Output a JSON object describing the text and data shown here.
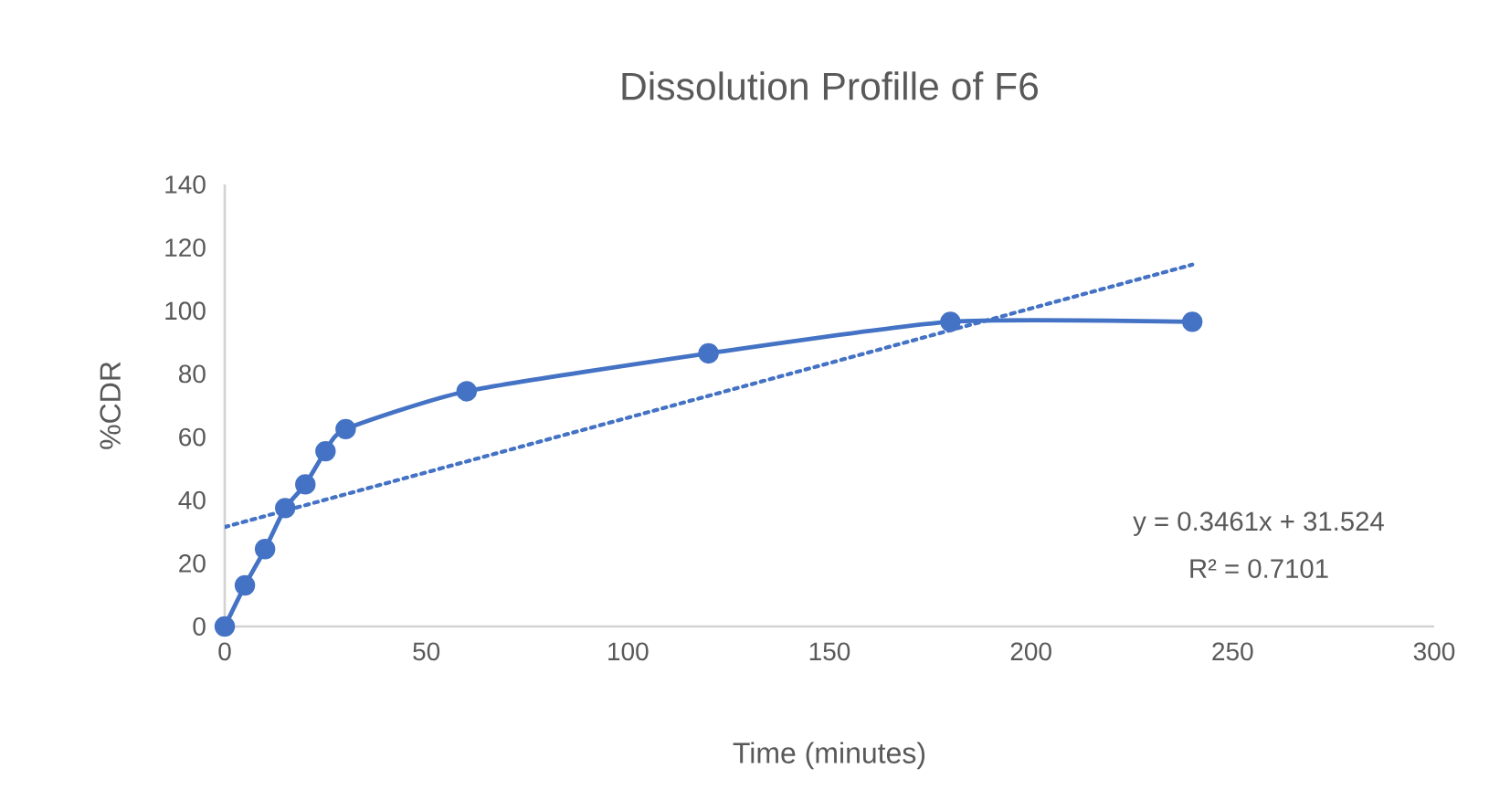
{
  "chart_data": {
    "type": "line",
    "title": "Dissolution Profille of F6",
    "xlabel": "Time (minutes)",
    "ylabel": "%CDR",
    "x": [
      0,
      5,
      10,
      15,
      20,
      25,
      30,
      60,
      120,
      180,
      240
    ],
    "series": [
      {
        "color": "#4472c4",
        "values": [
          0,
          13,
          24.5,
          37.5,
          45,
          55.5,
          62.5,
          74.5,
          86.5,
          96.5,
          96.5
        ],
        "marker": "circle",
        "line_style": "solid"
      },
      {
        "type": "line",
        "color": "#4472c4",
        "x": [
          0,
          240
        ],
        "values": [
          31.5,
          114.6
        ],
        "marker": "none",
        "line_style": "dotted"
      }
    ],
    "xlim": [
      0,
      300
    ],
    "xticks": [
      0,
      50,
      100,
      150,
      200,
      250,
      300
    ],
    "ylim": [
      0,
      140
    ],
    "yticks": [
      0,
      20,
      40,
      60,
      80,
      100,
      120,
      140
    ],
    "grid": false,
    "annotations": [
      "y = 0.3461x + 31.524",
      "R² = 0.7101"
    ]
  }
}
